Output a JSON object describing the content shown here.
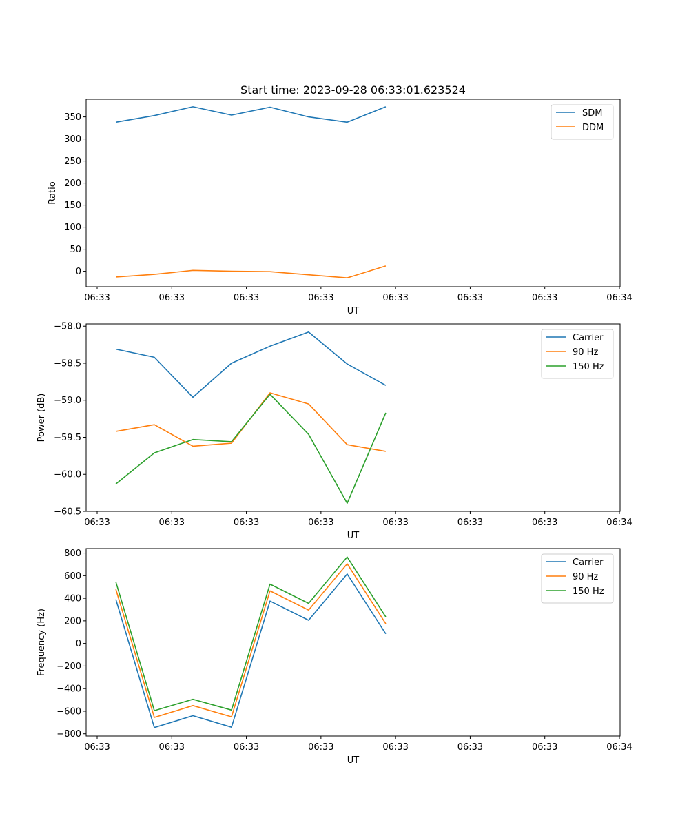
{
  "figure_title": "Start time: 2023-09-28 06:33:01.623524",
  "colors": {
    "blue": "#1f77b4",
    "orange": "#ff7f0e",
    "green": "#2ca02c",
    "axis": "#000000",
    "legend_border": "#cccccc"
  },
  "chart_data": [
    {
      "type": "line",
      "title": "Start time: 2023-09-28 06:33:01.623524",
      "xlabel": "UT",
      "ylabel": "Ratio",
      "x_tick_labels": [
        "06:33",
        "06:33",
        "06:33",
        "06:33",
        "06:33",
        "06:33",
        "06:33"
      ],
      "x_last_tick_label": "06:34",
      "xlim": [
        0,
        9
      ],
      "ylim": [
        -35,
        390
      ],
      "y_ticks": [
        0,
        50,
        100,
        150,
        200,
        250,
        300,
        350
      ],
      "x": [
        0.5,
        1.15,
        1.8,
        2.45,
        3.1,
        3.75,
        4.4,
        5.05
      ],
      "legend_position": "top-right",
      "series": [
        {
          "name": "SDM",
          "color": "#1f77b4",
          "values": [
            338,
            353,
            373,
            354,
            372,
            350,
            338,
            373
          ]
        },
        {
          "name": "DDM",
          "color": "#ff7f0e",
          "values": [
            -13,
            -7,
            2,
            0,
            -1,
            -8,
            -15,
            12
          ]
        }
      ]
    },
    {
      "type": "line",
      "xlabel": "UT",
      "ylabel": "Power (dB)",
      "x_tick_labels": [
        "06:33",
        "06:33",
        "06:33",
        "06:33",
        "06:33",
        "06:33",
        "06:33"
      ],
      "x_last_tick_label": "06:34",
      "xlim": [
        0,
        9
      ],
      "ylim": [
        -60.5,
        -57.97
      ],
      "y_ticks": [
        -60.5,
        -60.0,
        -59.5,
        -59.0,
        -58.5,
        -58.0
      ],
      "y_tick_labels": [
        "−60.5",
        "−60.0",
        "−59.5",
        "−59.0",
        "−58.5",
        "−58.0"
      ],
      "x": [
        0.5,
        1.15,
        1.8,
        2.45,
        3.1,
        3.75,
        4.4,
        5.05
      ],
      "legend_position": "top-right",
      "series": [
        {
          "name": "Carrier",
          "color": "#1f77b4",
          "values": [
            -58.31,
            -58.42,
            -58.96,
            -58.5,
            -58.27,
            -58.08,
            -58.51,
            -58.8
          ]
        },
        {
          "name": "90 Hz",
          "color": "#ff7f0e",
          "values": [
            -59.42,
            -59.33,
            -59.62,
            -59.58,
            -58.9,
            -59.05,
            -59.6,
            -59.69
          ]
        },
        {
          "name": "150 Hz",
          "color": "#2ca02c",
          "values": [
            -60.13,
            -59.71,
            -59.53,
            -59.56,
            -58.92,
            -59.46,
            -60.39,
            -59.17
          ]
        }
      ]
    },
    {
      "type": "line",
      "xlabel": "UT",
      "ylabel": "Frequency (Hz)",
      "x_tick_labels": [
        "06:33",
        "06:33",
        "06:33",
        "06:33",
        "06:33",
        "06:33",
        "06:33"
      ],
      "x_last_tick_label": "06:34",
      "xlim": [
        0,
        9
      ],
      "ylim": [
        -820,
        840
      ],
      "y_ticks": [
        -800,
        -600,
        -400,
        -200,
        0,
        200,
        400,
        600,
        800
      ],
      "y_tick_labels": [
        "−800",
        "−600",
        "−400",
        "−200",
        "0",
        "200",
        "400",
        "600",
        "800"
      ],
      "x": [
        0.5,
        1.15,
        1.8,
        2.45,
        3.1,
        3.75,
        4.4,
        5.05
      ],
      "legend_position": "top-right",
      "series": [
        {
          "name": "Carrier",
          "color": "#1f77b4",
          "values": [
            390,
            -745,
            -640,
            -742,
            375,
            205,
            615,
            85
          ]
        },
        {
          "name": "90 Hz",
          "color": "#ff7f0e",
          "values": [
            480,
            -655,
            -550,
            -650,
            465,
            295,
            705,
            175
          ]
        },
        {
          "name": "150 Hz",
          "color": "#2ca02c",
          "values": [
            545,
            -595,
            -495,
            -590,
            525,
            355,
            765,
            235
          ]
        }
      ]
    }
  ]
}
